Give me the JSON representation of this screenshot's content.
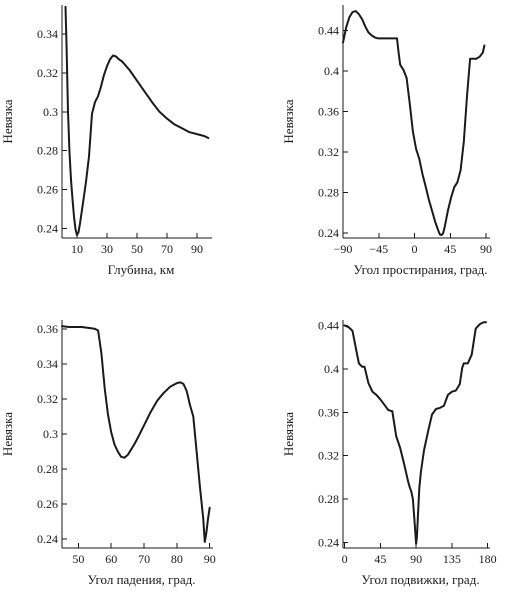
{
  "chart_data": [
    {
      "type": "line",
      "xlabel": "Глубина, км",
      "ylabel": "Невязка",
      "xlim": [
        0,
        100
      ],
      "ylim": [
        0.235,
        0.355
      ],
      "xticks": [
        10,
        30,
        50,
        70,
        90
      ],
      "yticks": [
        0.24,
        0.26,
        0.28,
        0.3,
        0.32,
        0.34
      ],
      "ytick_labels": [
        "0.24",
        "0.26",
        "0.28",
        "0.3",
        "0.32",
        "0.34"
      ],
      "x": [
        2.3,
        3.0,
        4.0,
        5.0,
        6.0,
        7.0,
        8.0,
        9.0,
        10.0,
        11.0,
        12.0,
        14.0,
        16.0,
        18.0,
        20.0,
        22.0,
        24.0,
        26.0,
        28.0,
        30.0,
        32.0,
        34.0,
        36.0,
        38.0,
        40.0,
        45.0,
        50.0,
        55.0,
        60.0,
        65.0,
        70.0,
        75.0,
        80.0,
        85.0,
        90.0,
        95.0,
        97.5
      ],
      "y": [
        0.354,
        0.335,
        0.3,
        0.279,
        0.265,
        0.255,
        0.246,
        0.2395,
        0.2365,
        0.238,
        0.2425,
        0.253,
        0.264,
        0.277,
        0.299,
        0.305,
        0.308,
        0.313,
        0.319,
        0.3235,
        0.327,
        0.329,
        0.3285,
        0.327,
        0.326,
        0.3215,
        0.316,
        0.3105,
        0.305,
        0.3,
        0.2965,
        0.2935,
        0.2915,
        0.2895,
        0.2885,
        0.2875,
        0.2865
      ]
    },
    {
      "type": "line",
      "xlabel": "Угол простирания, град.",
      "ylabel": "Невязка",
      "xlim": [
        -90,
        95
      ],
      "ylim": [
        0.235,
        0.465
      ],
      "xticks": [
        -90,
        -45,
        0,
        45,
        90
      ],
      "xtick_labels": [
        "−90",
        "−45",
        "0",
        "45",
        "90"
      ],
      "yticks": [
        0.24,
        0.28,
        0.32,
        0.36,
        0.4,
        0.44
      ],
      "ytick_labels": [
        "0.24",
        "0.28",
        "0.32",
        "0.36",
        "0.4",
        "0.44"
      ],
      "x": [
        -90,
        -86,
        -82,
        -78,
        -74,
        -70,
        -66,
        -62,
        -58,
        -54,
        -50,
        -46,
        -42,
        -38,
        -34,
        -30,
        -26,
        -22,
        -20,
        -18,
        -14,
        -10,
        -6,
        -2,
        2,
        6,
        10,
        14,
        18,
        22,
        26,
        30,
        32,
        34,
        36,
        38,
        42,
        46,
        50,
        54,
        58,
        62,
        66,
        70,
        74,
        78,
        82,
        86,
        88
      ],
      "y": [
        0.428,
        0.443,
        0.453,
        0.458,
        0.459,
        0.456,
        0.451,
        0.444,
        0.438,
        0.435,
        0.433,
        0.432,
        0.432,
        0.432,
        0.432,
        0.432,
        0.432,
        0.432,
        0.418,
        0.406,
        0.401,
        0.393,
        0.368,
        0.34,
        0.323,
        0.313,
        0.298,
        0.286,
        0.273,
        0.262,
        0.251,
        0.242,
        0.2385,
        0.238,
        0.2395,
        0.246,
        0.262,
        0.275,
        0.285,
        0.29,
        0.302,
        0.33,
        0.375,
        0.412,
        0.412,
        0.412,
        0.414,
        0.418,
        0.425
      ]
    },
    {
      "type": "line",
      "xlabel": "Угол падения, град.",
      "ylabel": "Невязка",
      "xlim": [
        45,
        91
      ],
      "ylim": [
        0.235,
        0.365
      ],
      "xticks": [
        50,
        60,
        70,
        80,
        90
      ],
      "yticks": [
        0.24,
        0.26,
        0.28,
        0.3,
        0.32,
        0.34,
        0.36
      ],
      "ytick_labels": [
        "0.24",
        "0.26",
        "0.28",
        "0.3",
        "0.32",
        "0.34",
        "0.36"
      ],
      "x": [
        45,
        47,
        49,
        51,
        53,
        55,
        56,
        57,
        58,
        59,
        60,
        61,
        62,
        63,
        64,
        65,
        66,
        67,
        68,
        70,
        72,
        74,
        76,
        78,
        80,
        81,
        82,
        83,
        84,
        85,
        86,
        87,
        88,
        88.5,
        89,
        89.5,
        90
      ],
      "y": [
        0.3615,
        0.361,
        0.361,
        0.361,
        0.3605,
        0.36,
        0.359,
        0.346,
        0.326,
        0.311,
        0.301,
        0.294,
        0.29,
        0.287,
        0.2865,
        0.288,
        0.291,
        0.294,
        0.2975,
        0.305,
        0.3125,
        0.319,
        0.3235,
        0.327,
        0.329,
        0.3295,
        0.3285,
        0.3245,
        0.3165,
        0.31,
        0.29,
        0.27,
        0.252,
        0.2385,
        0.244,
        0.252,
        0.258
      ]
    },
    {
      "type": "line",
      "xlabel": "Угол подвижки, град.",
      "ylabel": "Невязка",
      "xlim": [
        -2,
        183
      ],
      "ylim": [
        0.235,
        0.445
      ],
      "xticks": [
        0,
        45,
        90,
        135,
        180
      ],
      "yticks": [
        0.24,
        0.28,
        0.32,
        0.36,
        0.4,
        0.44
      ],
      "ytick_labels": [
        "0.24",
        "0.28",
        "0.32",
        "0.36",
        "0.4",
        "0.44"
      ],
      "x": [
        0,
        5,
        10,
        15,
        18,
        22,
        25,
        30,
        35,
        40,
        45,
        50,
        55,
        60,
        65,
        70,
        75,
        80,
        82,
        84,
        86,
        88,
        90,
        91,
        92,
        94,
        96,
        100,
        105,
        110,
        115,
        120,
        125,
        130,
        135,
        140,
        145,
        148,
        150,
        155,
        160,
        165,
        170,
        175,
        178
      ],
      "y": [
        0.44,
        0.4385,
        0.435,
        0.416,
        0.405,
        0.402,
        0.402,
        0.387,
        0.379,
        0.376,
        0.372,
        0.367,
        0.362,
        0.361,
        0.338,
        0.327,
        0.312,
        0.296,
        0.291,
        0.287,
        0.28,
        0.26,
        0.239,
        0.245,
        0.26,
        0.29,
        0.305,
        0.325,
        0.342,
        0.358,
        0.363,
        0.364,
        0.366,
        0.376,
        0.379,
        0.38,
        0.386,
        0.401,
        0.405,
        0.405,
        0.413,
        0.437,
        0.441,
        0.443,
        0.443
      ]
    }
  ]
}
